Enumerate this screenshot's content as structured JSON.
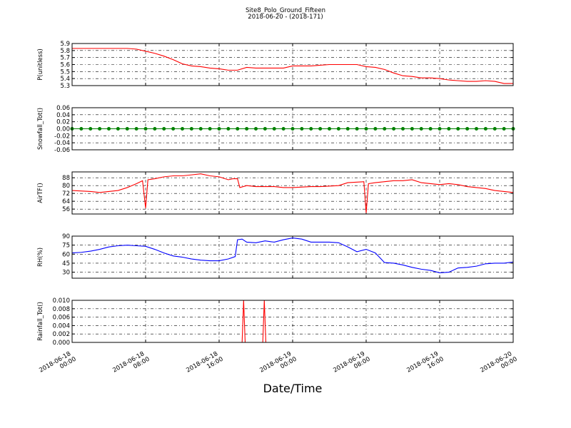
{
  "figure": {
    "title": "Site8_Polo_Ground_Fifteen",
    "subtitle": "2018-06-20 - (2018-171)",
    "xlabel": "Date/Time"
  },
  "chart_data": [
    {
      "type": "line",
      "ylabel": "P(unitless)",
      "color": "#ff0000",
      "x": [
        "2018-06-18 00:00",
        "2018-06-18 01:00",
        "2018-06-18 02:00",
        "2018-06-18 03:00",
        "2018-06-18 04:00",
        "2018-06-18 05:00",
        "2018-06-18 06:00",
        "2018-06-18 07:00",
        "2018-06-18 08:00",
        "2018-06-18 09:00",
        "2018-06-18 10:00",
        "2018-06-18 11:00",
        "2018-06-18 12:00",
        "2018-06-18 13:00",
        "2018-06-18 14:00",
        "2018-06-18 15:00",
        "2018-06-18 16:00",
        "2018-06-18 17:00",
        "2018-06-18 18:00",
        "2018-06-18 19:00",
        "2018-06-18 20:00",
        "2018-06-18 21:00",
        "2018-06-18 22:00",
        "2018-06-18 23:00",
        "2018-06-19 00:00",
        "2018-06-19 01:00",
        "2018-06-19 02:00",
        "2018-06-19 03:00",
        "2018-06-19 04:00",
        "2018-06-19 05:00",
        "2018-06-19 06:00",
        "2018-06-19 07:00",
        "2018-06-19 08:00",
        "2018-06-19 09:00",
        "2018-06-19 10:00",
        "2018-06-19 11:00",
        "2018-06-19 12:00",
        "2018-06-19 13:00",
        "2018-06-19 14:00",
        "2018-06-19 15:00",
        "2018-06-19 16:00",
        "2018-06-19 17:00",
        "2018-06-19 18:00",
        "2018-06-19 19:00",
        "2018-06-19 20:00",
        "2018-06-19 21:00",
        "2018-06-19 22:00",
        "2018-06-19 23:00",
        "2018-06-20 00:00"
      ],
      "values": [
        5.83,
        5.83,
        5.83,
        5.83,
        5.83,
        5.83,
        5.83,
        5.82,
        5.79,
        5.76,
        5.72,
        5.67,
        5.61,
        5.58,
        5.57,
        5.55,
        5.54,
        5.52,
        5.52,
        5.56,
        5.55,
        5.55,
        5.55,
        5.55,
        5.58,
        5.58,
        5.58,
        5.59,
        5.6,
        5.6,
        5.6,
        5.6,
        5.57,
        5.56,
        5.53,
        5.48,
        5.44,
        5.43,
        5.41,
        5.41,
        5.4,
        5.38,
        5.37,
        5.36,
        5.36,
        5.37,
        5.36,
        5.33,
        5.33
      ],
      "ylim": [
        5.3,
        5.9
      ],
      "yticks": [
        5.3,
        5.4,
        5.5,
        5.6,
        5.7,
        5.8,
        5.9
      ],
      "grid": true
    },
    {
      "type": "line",
      "ylabel": "Snowfall_Tot()",
      "color": "#008000",
      "marker": true,
      "x": [
        "2018-06-18 00:00",
        "2018-06-18 01:00",
        "2018-06-18 02:00",
        "2018-06-18 03:00",
        "2018-06-18 04:00",
        "2018-06-18 05:00",
        "2018-06-18 06:00",
        "2018-06-18 07:00",
        "2018-06-18 08:00",
        "2018-06-18 09:00",
        "2018-06-18 10:00",
        "2018-06-18 11:00",
        "2018-06-18 12:00",
        "2018-06-18 13:00",
        "2018-06-18 14:00",
        "2018-06-18 15:00",
        "2018-06-18 16:00",
        "2018-06-18 17:00",
        "2018-06-18 18:00",
        "2018-06-18 19:00",
        "2018-06-18 20:00",
        "2018-06-18 21:00",
        "2018-06-18 22:00",
        "2018-06-18 23:00",
        "2018-06-19 00:00",
        "2018-06-19 01:00",
        "2018-06-19 02:00",
        "2018-06-19 03:00",
        "2018-06-19 04:00",
        "2018-06-19 05:00",
        "2018-06-19 06:00",
        "2018-06-19 07:00",
        "2018-06-19 08:00",
        "2018-06-19 09:00",
        "2018-06-19 10:00",
        "2018-06-19 11:00",
        "2018-06-19 12:00",
        "2018-06-19 13:00",
        "2018-06-19 14:00",
        "2018-06-19 15:00",
        "2018-06-19 16:00",
        "2018-06-19 17:00",
        "2018-06-19 18:00",
        "2018-06-19 19:00",
        "2018-06-19 20:00",
        "2018-06-19 21:00",
        "2018-06-19 22:00",
        "2018-06-19 23:00",
        "2018-06-20 00:00"
      ],
      "values": [
        0,
        0,
        0,
        0,
        0,
        0,
        0,
        0,
        0,
        0,
        0,
        0,
        0,
        0,
        0,
        0,
        0,
        0,
        0,
        0,
        0,
        0,
        0,
        0,
        0,
        0,
        0,
        0,
        0,
        0,
        0,
        0,
        0,
        0,
        0,
        0,
        0,
        0,
        0,
        0,
        0,
        0,
        0,
        0,
        0,
        0,
        0,
        0,
        0
      ],
      "ylim": [
        -0.06,
        0.06
      ],
      "yticks": [
        -0.06,
        -0.04,
        -0.02,
        {
          "value": 0,
          "label": "0.00"
        },
        0.02,
        0.04,
        0.06
      ],
      "grid": true
    },
    {
      "type": "line",
      "ylabel": "AirTF()",
      "color": "#ff0000",
      "x": [
        "2018-06-18 00:00",
        "2018-06-18 02:00",
        "2018-06-18 03:00",
        "2018-06-18 05:00",
        "2018-06-18 06:00",
        "2018-06-18 07:00",
        "2018-06-18 07:40",
        "2018-06-18 08:00",
        "2018-06-18 08:15",
        "2018-06-18 09:00",
        "2018-06-18 10:00",
        "2018-06-18 11:00",
        "2018-06-18 12:00",
        "2018-06-18 13:00",
        "2018-06-18 14:00",
        "2018-06-18 15:00",
        "2018-06-18 16:00",
        "2018-06-18 17:00",
        "2018-06-18 17:30",
        "2018-06-18 18:00",
        "2018-06-18 18:15",
        "2018-06-18 19:00",
        "2018-06-18 20:00",
        "2018-06-18 21:00",
        "2018-06-18 22:00",
        "2018-06-18 23:00",
        "2018-06-19 00:00",
        "2018-06-19 02:00",
        "2018-06-19 03:00",
        "2018-06-19 05:00",
        "2018-06-19 06:00",
        "2018-06-19 07:45",
        "2018-06-19 08:00",
        "2018-06-19 08:15",
        "2018-06-19 09:00",
        "2018-06-19 10:00",
        "2018-06-19 11:00",
        "2018-06-19 12:00",
        "2018-06-19 13:00",
        "2018-06-19 14:00",
        "2018-06-19 15:00",
        "2018-06-19 16:00",
        "2018-06-19 17:00",
        "2018-06-19 18:00",
        "2018-06-19 19:00",
        "2018-06-19 20:00",
        "2018-06-19 21:00",
        "2018-06-19 22:00",
        "2018-06-19 23:00",
        "2018-06-20 00:00"
      ],
      "values": [
        75,
        74,
        73,
        75,
        78,
        82,
        85,
        57,
        86,
        87,
        89,
        90,
        90,
        91,
        92,
        90,
        89,
        86,
        87,
        87,
        78,
        80,
        79,
        79,
        79,
        78,
        78,
        79,
        79,
        80,
        83,
        84,
        52,
        82,
        83,
        84,
        85,
        85,
        86,
        83,
        82,
        81,
        82,
        81,
        79,
        78,
        77,
        75,
        74,
        73
      ],
      "ylim": [
        51,
        94
      ],
      "yticks": [
        56,
        64,
        72,
        80,
        88
      ],
      "grid": true
    },
    {
      "type": "line",
      "ylabel": "RH(%)",
      "color": "#0000ff",
      "x": [
        "2018-06-18 00:00",
        "2018-06-18 01:00",
        "2018-06-18 02:00",
        "2018-06-18 03:00",
        "2018-06-18 04:00",
        "2018-06-18 05:00",
        "2018-06-18 06:00",
        "2018-06-18 07:00",
        "2018-06-18 08:00",
        "2018-06-18 09:00",
        "2018-06-18 10:00",
        "2018-06-18 11:00",
        "2018-06-18 12:00",
        "2018-06-18 13:00",
        "2018-06-18 14:00",
        "2018-06-18 15:00",
        "2018-06-18 16:00",
        "2018-06-18 17:00",
        "2018-06-18 17:45",
        "2018-06-18 18:00",
        "2018-06-18 18:30",
        "2018-06-18 19:00",
        "2018-06-18 20:00",
        "2018-06-18 21:00",
        "2018-06-18 22:00",
        "2018-06-18 23:00",
        "2018-06-19 00:00",
        "2018-06-19 01:00",
        "2018-06-19 02:00",
        "2018-06-19 03:00",
        "2018-06-19 04:00",
        "2018-06-19 05:00",
        "2018-06-19 06:00",
        "2018-06-19 07:00",
        "2018-06-19 08:00",
        "2018-06-19 09:00",
        "2018-06-19 10:00",
        "2018-06-19 11:00",
        "2018-06-19 12:00",
        "2018-06-19 13:00",
        "2018-06-19 14:00",
        "2018-06-19 15:00",
        "2018-06-19 16:00",
        "2018-06-19 17:00",
        "2018-06-19 18:00",
        "2018-06-19 19:00",
        "2018-06-19 20:00",
        "2018-06-19 21:00",
        "2018-06-19 22:00",
        "2018-06-19 23:00",
        "2018-06-20 00:00"
      ],
      "values": [
        62,
        63,
        65,
        68,
        72,
        74,
        75,
        74,
        73,
        68,
        62,
        57,
        55,
        52,
        50,
        49,
        49,
        52,
        56,
        84,
        85,
        80,
        79,
        82,
        80,
        84,
        87,
        85,
        80,
        80,
        80,
        79,
        72,
        64,
        68,
        62,
        46,
        45,
        42,
        38,
        35,
        33,
        29,
        30,
        37,
        38,
        40,
        44,
        45,
        45,
        47
      ],
      "ylim": [
        20,
        90
      ],
      "yticks": [
        30,
        45,
        60,
        75,
        90
      ],
      "grid": true
    },
    {
      "type": "line",
      "ylabel": "Rainfall_Tot()",
      "color": "#ff0000",
      "x": [
        "2018-06-18 00:00",
        "2018-06-18 18:30",
        "2018-06-18 18:40",
        "2018-06-18 18:50",
        "2018-06-18 20:45",
        "2018-06-18 20:55",
        "2018-06-18 21:05",
        "2018-06-20 00:00"
      ],
      "values": [
        0,
        0,
        0.01,
        0,
        0,
        0.01,
        0,
        0
      ],
      "ylim": [
        0,
        0.01
      ],
      "yticks": [
        {
          "value": 0,
          "label": "0.000"
        },
        {
          "value": 0.002,
          "label": "0.002"
        },
        {
          "value": 0.004,
          "label": "0.004"
        },
        {
          "value": 0.006,
          "label": "0.006"
        },
        {
          "value": 0.008,
          "label": "0.008"
        },
        {
          "value": 0.01,
          "label": "0.010"
        }
      ],
      "grid": true,
      "xlim": [
        "2018-06-18 00:00",
        "2018-06-20 00:00"
      ],
      "xticks": [
        "2018-06-18 00:00",
        "2018-06-18 08:00",
        "2018-06-18 16:00",
        "2018-06-19 00:00",
        "2018-06-19 08:00",
        "2018-06-19 16:00",
        "2018-06-20 00:00"
      ]
    }
  ]
}
